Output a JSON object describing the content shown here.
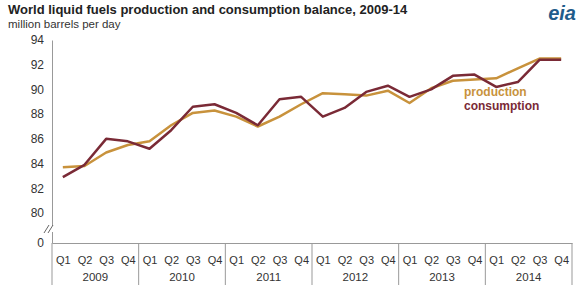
{
  "chart_data": {
    "type": "line",
    "title": "World liquid fuels production and consumption balance, 2009-14",
    "subtitle": "million barrels per day",
    "logo": "eia",
    "categories": [
      "Q1",
      "Q2",
      "Q3",
      "Q4",
      "Q1",
      "Q2",
      "Q3",
      "Q4",
      "Q1",
      "Q2",
      "Q3",
      "Q4",
      "Q1",
      "Q2",
      "Q3",
      "Q4",
      "Q1",
      "Q2",
      "Q3",
      "Q4",
      "Q1",
      "Q2",
      "Q3",
      "Q4"
    ],
    "category_groups": [
      "2009",
      "2010",
      "2011",
      "2012",
      "2013",
      "2014"
    ],
    "series": [
      {
        "name": "production",
        "color": "#c8923c",
        "values": [
          83.7,
          83.8,
          84.9,
          85.5,
          85.8,
          87.1,
          88.1,
          88.3,
          87.8,
          87.0,
          87.8,
          88.8,
          89.7,
          89.6,
          89.5,
          89.9,
          88.9,
          90.1,
          90.7,
          90.8,
          90.9,
          91.7,
          92.5,
          92.5
        ]
      },
      {
        "name": "consumption",
        "color": "#7a2a36",
        "values": [
          82.9,
          83.9,
          86.0,
          85.8,
          85.2,
          86.7,
          88.6,
          88.8,
          88.1,
          87.1,
          89.2,
          89.4,
          87.8,
          88.5,
          89.8,
          90.3,
          89.4,
          90.0,
          91.1,
          91.2,
          90.2,
          90.6,
          92.4,
          92.4
        ]
      }
    ],
    "ylim": [
      0,
      94
    ],
    "yticks": [
      0,
      80,
      82,
      84,
      86,
      88,
      90,
      92,
      94
    ],
    "grid": false,
    "legend": "right"
  }
}
